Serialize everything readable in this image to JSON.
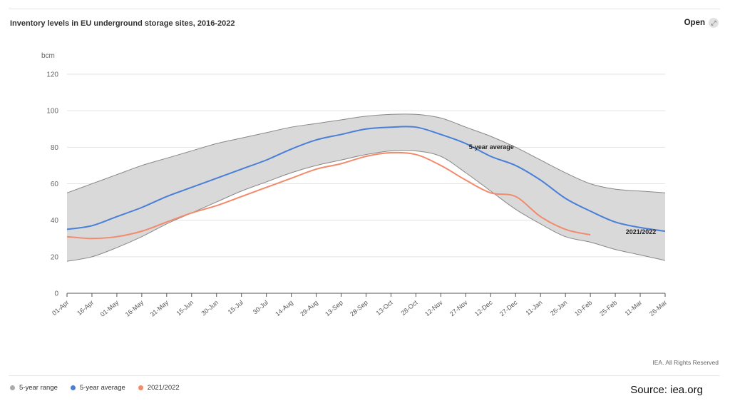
{
  "header": {
    "title": "Inventory levels in EU underground storage sites, 2016-2022",
    "open_label": "Open"
  },
  "footer": {
    "rights": "IEA. All Rights Reserved",
    "source": "Source: iea.org"
  },
  "legend": [
    {
      "label": "5-year range",
      "color": "#aaaaaa"
    },
    {
      "label": "5-year average",
      "color": "#4a7fd8"
    },
    {
      "label": "2021/2022",
      "color": "#f28a6c"
    }
  ],
  "colors": {
    "range_fill": "#d9d9d9",
    "range_edge": "#888888",
    "average": "#4a7fd8",
    "current": "#f28a6c",
    "grid": "#e3e3e3",
    "axis": "#555555"
  },
  "chart_data": {
    "type": "area",
    "title": "Inventory levels in EU underground storage sites, 2016-2022",
    "ylabel": "bcm",
    "xlabel": "",
    "ylim": [
      0,
      120
    ],
    "yticks": [
      0,
      20,
      40,
      60,
      80,
      100,
      120
    ],
    "grid": true,
    "legend_position": "bottom-left",
    "categories": [
      "01-Apr",
      "16-Apr",
      "01-May",
      "16-May",
      "31-May",
      "15-Jun",
      "30-Jun",
      "15-Jul",
      "30-Jul",
      "14-Aug",
      "29-Aug",
      "13-Sep",
      "28-Sep",
      "13-Oct",
      "28-Oct",
      "12-Nov",
      "27-Nov",
      "12-Dec",
      "27-Dec",
      "11-Jan",
      "26-Jan",
      "10-Feb",
      "25-Feb",
      "11-Mar",
      "26-Mar"
    ],
    "series": [
      {
        "name": "5-year range",
        "kind": "range",
        "min": [
          17.5,
          20,
          25,
          31,
          38,
          44,
          50,
          56,
          61,
          66,
          70,
          73,
          76,
          78,
          78,
          75,
          66,
          56,
          46,
          38,
          31,
          28,
          24,
          21,
          18
        ],
        "max": [
          55,
          60,
          65,
          70,
          74,
          78,
          82,
          85,
          88,
          91,
          93,
          95,
          97,
          98,
          98,
          96,
          91,
          86,
          80,
          73,
          66,
          60,
          57,
          56,
          55
        ]
      },
      {
        "name": "5-year average",
        "kind": "line",
        "values": [
          35,
          37,
          42,
          47,
          53,
          58,
          63,
          68,
          73,
          79,
          84,
          87,
          90,
          91,
          91,
          87,
          82,
          75,
          70,
          62,
          52,
          45,
          39,
          36,
          34
        ]
      },
      {
        "name": "2021/2022",
        "kind": "line",
        "values": [
          31,
          30,
          31,
          34,
          39,
          44,
          48,
          53,
          58,
          63,
          68,
          71,
          75,
          77,
          76,
          70,
          62,
          55,
          53,
          42,
          35,
          32,
          null,
          null,
          null
        ]
      }
    ],
    "annotations": [
      {
        "text": "5-year average",
        "category": "12-Dec",
        "y": 79
      },
      {
        "text": "2021/2022",
        "category": "11-Mar",
        "y": 32.5
      }
    ]
  }
}
